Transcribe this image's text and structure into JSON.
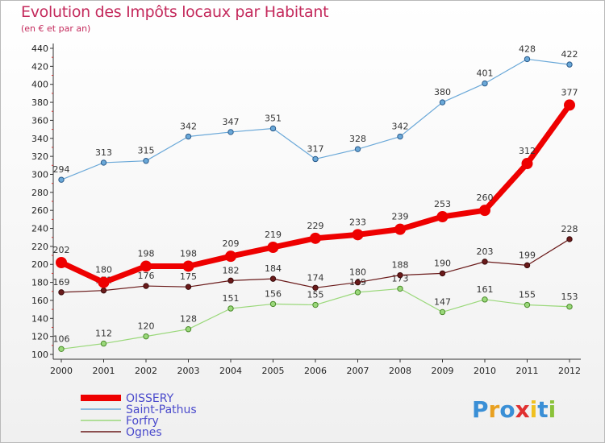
{
  "title": "Evolution des Impôts locaux par Habitant",
  "subtitle": "(en € et par an)",
  "logo": {
    "letters": [
      "P",
      "r",
      "o",
      "x",
      "i",
      "t",
      "i"
    ],
    "colors": [
      "#3a8fd6",
      "#e8a020",
      "#3a8fd6",
      "#e03030",
      "#f0c020",
      "#3a8fd6",
      "#8ac23a"
    ]
  },
  "chart_data": {
    "type": "line",
    "x": [
      "2000",
      "2001",
      "2002",
      "2003",
      "2004",
      "2005",
      "2006",
      "2007",
      "2008",
      "2009",
      "2010",
      "2011",
      "2012"
    ],
    "ylim": [
      100,
      440
    ],
    "yticks": [
      100,
      120,
      140,
      160,
      180,
      200,
      220,
      240,
      260,
      280,
      300,
      320,
      340,
      360,
      380,
      400,
      420,
      440
    ],
    "grid": false,
    "legend_position": "bottom-left",
    "series": [
      {
        "name": "OISSERY",
        "color": "#ee0000",
        "values": [
          202,
          180,
          198,
          198,
          209,
          219,
          229,
          233,
          239,
          253,
          260,
          312,
          377
        ]
      },
      {
        "name": "Saint-Pathus",
        "color": "#6aa8d8",
        "values": [
          294,
          313,
          315,
          342,
          347,
          351,
          317,
          328,
          342,
          380,
          401,
          428,
          422
        ]
      },
      {
        "name": "Forfry",
        "color": "#9ad87a",
        "values": [
          106,
          112,
          120,
          128,
          151,
          156,
          155,
          169,
          173,
          147,
          161,
          155,
          153
        ]
      },
      {
        "name": "Ognes",
        "color": "#6a1a1a",
        "values": [
          169,
          171,
          176,
          175,
          182,
          184,
          174,
          180,
          188,
          190,
          203,
          199,
          228
        ]
      }
    ]
  }
}
